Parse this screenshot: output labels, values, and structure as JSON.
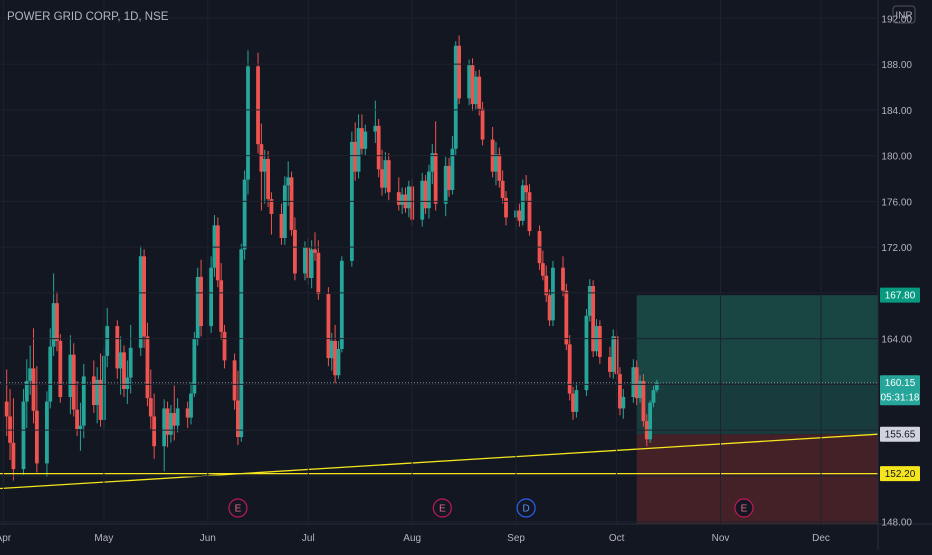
{
  "header": {
    "title": "POWER GRID CORP, 1D, NSE",
    "currency_button": "INR"
  },
  "colors": {
    "background": "#131722",
    "up": "#26a69a",
    "down": "#ef5350",
    "text": "#b2b5be",
    "trendline": "#f5e51c",
    "profit_zone": "#1b4a47",
    "loss_zone": "#4a2128"
  },
  "chart_data": {
    "type": "candlestick",
    "title": "POWER GRID CORP, 1D, NSE",
    "currency": "INR",
    "ylim": [
      147.8,
      193.6
    ],
    "y_ticks": [
      "148.00",
      "152.00",
      "156.00",
      "160.00",
      "164.00",
      "168.00",
      "172.00",
      "176.00",
      "180.00",
      "184.00",
      "188.00",
      "192.00"
    ],
    "x_ticks": [
      {
        "label": "Apr",
        "day": 0
      },
      {
        "label": "May",
        "day": 30
      },
      {
        "label": "Jun",
        "day": 61
      },
      {
        "label": "Jul",
        "day": 91
      },
      {
        "label": "Aug",
        "day": 122
      },
      {
        "label": "Sep",
        "day": 153
      },
      {
        "label": "Oct",
        "day": 183
      },
      {
        "label": "Nov",
        "day": 214
      },
      {
        "label": "Dec",
        "day": 244
      }
    ],
    "x_range_days": [
      -1,
      261
    ],
    "candles": [
      [
        1,
        158.5,
        161.3,
        155.5,
        157.2
      ],
      [
        2,
        157.2,
        159.6,
        153.4,
        154.9
      ],
      [
        3,
        154.9,
        158.8,
        151.6,
        152.6
      ],
      [
        6,
        152.6,
        159.6,
        152.1,
        158.5
      ],
      [
        7,
        158.5,
        162.2,
        156.2,
        160.3
      ],
      [
        8,
        160.3,
        163.4,
        159.1,
        161.4
      ],
      [
        9,
        161.4,
        164.9,
        156.6,
        157.7
      ],
      [
        10,
        157.7,
        161.6,
        152.3,
        153.1
      ],
      [
        13,
        153.1,
        159.4,
        151.9,
        158.5
      ],
      [
        14,
        158.5,
        164.9,
        157.9,
        163.3
      ],
      [
        15,
        163.3,
        169.7,
        162.5,
        167.1
      ],
      [
        16,
        167.1,
        168.1,
        162.9,
        163.8
      ],
      [
        17,
        163.8,
        164.4,
        158.4,
        158.9
      ],
      [
        20,
        158.9,
        164.3,
        157.4,
        162.6
      ],
      [
        21,
        162.6,
        163.6,
        157.2,
        157.8
      ],
      [
        22,
        157.8,
        160.3,
        155.5,
        156.1
      ],
      [
        23,
        156.1,
        158.4,
        154.2,
        156.4
      ],
      [
        24,
        156.4,
        161.8,
        155.3,
        160.7
      ],
      [
        27,
        160.7,
        162.1,
        157.5,
        158.2
      ],
      [
        28,
        158.2,
        161.5,
        156.6,
        160.4
      ],
      [
        29,
        160.4,
        162.7,
        156.3,
        156.9
      ],
      [
        30,
        156.9,
        163.3,
        156.0,
        162.5
      ],
      [
        31,
        162.5,
        166.7,
        161.5,
        165.1
      ],
      [
        34,
        165.1,
        165.6,
        160.5,
        161.4
      ],
      [
        35,
        161.4,
        164.2,
        159.1,
        162.8
      ],
      [
        36,
        162.8,
        163.4,
        158.9,
        159.6
      ],
      [
        37,
        159.6,
        162.1,
        158.3,
        160.6
      ],
      [
        38,
        160.6,
        165.2,
        159.2,
        163.2
      ],
      [
        41,
        163.2,
        172.1,
        162.5,
        171.2
      ],
      [
        42,
        171.2,
        171.8,
        163.2,
        164.2
      ],
      [
        43,
        164.2,
        165.4,
        158.1,
        158.8
      ],
      [
        44,
        158.8,
        161.3,
        156.1,
        157.2
      ],
      [
        45,
        157.2,
        159.2,
        153.5,
        154.6
      ],
      [
        48,
        154.6,
        158.7,
        152.4,
        157.9
      ],
      [
        49,
        157.9,
        158.5,
        154.5,
        155.6
      ],
      [
        50,
        155.6,
        158.2,
        154.9,
        157.5
      ],
      [
        51,
        157.5,
        159.9,
        155.1,
        156.4
      ],
      [
        52,
        156.4,
        158.8,
        155.8,
        157.9
      ],
      [
        55,
        157.9,
        158.5,
        156.2,
        157.1
      ],
      [
        56,
        157.1,
        160.2,
        156.5,
        159.2
      ],
      [
        57,
        159.2,
        164.6,
        158.9,
        164.0
      ],
      [
        58,
        164.0,
        170.2,
        163.4,
        169.4
      ],
      [
        59,
        169.4,
        170.9,
        164.2,
        165.1
      ],
      [
        62,
        165.1,
        171.2,
        164.5,
        170.2
      ],
      [
        63,
        170.2,
        174.8,
        169.4,
        173.9
      ],
      [
        64,
        173.9,
        174.6,
        168.5,
        169.1
      ],
      [
        65,
        169.1,
        170.6,
        163.9,
        164.6
      ],
      [
        66,
        164.6,
        165.2,
        161.4,
        162.1
      ],
      [
        69,
        162.1,
        162.7,
        157.8,
        158.6
      ],
      [
        70,
        158.6,
        161.2,
        154.7,
        155.4
      ],
      [
        71,
        155.4,
        172.3,
        155.0,
        171.8
      ],
      [
        72,
        171.8,
        178.7,
        170.9,
        177.9
      ],
      [
        73,
        177.9,
        189.2,
        176.6,
        187.8
      ],
      [
        76,
        187.8,
        189.0,
        180.2,
        181.0
      ],
      [
        77,
        181.0,
        182.8,
        175.2,
        178.6
      ],
      [
        78,
        178.6,
        180.5,
        175.8,
        179.7
      ],
      [
        79,
        179.7,
        180.4,
        175.5,
        176.2
      ],
      [
        80,
        176.2,
        176.8,
        173.1,
        174.9
      ],
      [
        83,
        174.9,
        175.8,
        172.2,
        172.8
      ],
      [
        84,
        172.8,
        178.2,
        172.2,
        177.4
      ],
      [
        85,
        177.4,
        179.5,
        175.6,
        178.1
      ],
      [
        86,
        178.1,
        178.6,
        173.0,
        173.5
      ],
      [
        87,
        173.5,
        174.6,
        169.1,
        169.7
      ],
      [
        90,
        169.7,
        172.5,
        169.1,
        172.0
      ],
      [
        91,
        172.0,
        172.8,
        168.7,
        169.3
      ],
      [
        92,
        169.3,
        172.6,
        168.4,
        171.8
      ],
      [
        93,
        171.8,
        173.3,
        170.8,
        171.5
      ],
      [
        94,
        171.5,
        172.6,
        167.4,
        167.9
      ],
      [
        97,
        167.9,
        168.5,
        161.6,
        162.3
      ],
      [
        98,
        162.3,
        164.5,
        161.2,
        163.8
      ],
      [
        99,
        163.8,
        165.2,
        160.1,
        160.8
      ],
      [
        100,
        160.8,
        163.8,
        160.5,
        163.1
      ],
      [
        101,
        163.1,
        171.2,
        162.8,
        170.8
      ],
      [
        104,
        170.8,
        182.1,
        170.3,
        181.2
      ],
      [
        105,
        181.2,
        182.9,
        177.8,
        178.6
      ],
      [
        106,
        178.6,
        183.6,
        178.0,
        182.4
      ],
      [
        107,
        182.4,
        183.6,
        180.1,
        180.6
      ],
      [
        108,
        180.6,
        182.7,
        180.0,
        182.1
      ],
      [
        111,
        182.1,
        184.8,
        181.1,
        182.6
      ],
      [
        112,
        182.6,
        183.2,
        178.1,
        178.8
      ],
      [
        113,
        178.8,
        180.5,
        176.5,
        177.2
      ],
      [
        114,
        177.2,
        180.3,
        176.7,
        179.6
      ],
      [
        115,
        179.6,
        180.2,
        176.1,
        176.8
      ],
      [
        118,
        176.8,
        178.1,
        175.2,
        175.7
      ],
      [
        119,
        175.7,
        177.2,
        174.9,
        176.6
      ],
      [
        120,
        176.6,
        177.2,
        175.0,
        175.4
      ],
      [
        121,
        175.4,
        177.8,
        174.6,
        177.3
      ],
      [
        122,
        177.3,
        178.0,
        173.9,
        174.4
      ],
      [
        125,
        174.4,
        178.5,
        173.8,
        177.8
      ],
      [
        126,
        177.8,
        178.3,
        174.9,
        175.4
      ],
      [
        127,
        175.4,
        179.2,
        174.5,
        178.6
      ],
      [
        128,
        178.6,
        181.0,
        177.5,
        180.2
      ],
      [
        129,
        180.2,
        183.0,
        175.2,
        175.8
      ],
      [
        132,
        175.8,
        179.9,
        174.7,
        179.1
      ],
      [
        133,
        179.1,
        179.8,
        176.4,
        177.0
      ],
      [
        134,
        177.0,
        181.7,
        176.6,
        180.6
      ],
      [
        135,
        180.6,
        190.0,
        180.0,
        189.6
      ],
      [
        136,
        189.6,
        190.5,
        184.5,
        185.0
      ],
      [
        139,
        185.0,
        188.4,
        184.4,
        187.9
      ],
      [
        140,
        187.9,
        188.5,
        183.9,
        184.5
      ],
      [
        141,
        184.5,
        187.4,
        184.0,
        186.9
      ],
      [
        142,
        186.9,
        187.5,
        183.5,
        184.1
      ],
      [
        143,
        184.1,
        184.7,
        180.9,
        181.4
      ],
      [
        146,
        181.4,
        182.5,
        178.1,
        178.6
      ],
      [
        147,
        178.6,
        181.2,
        177.4,
        180.1
      ],
      [
        148,
        180.1,
        180.7,
        177.2,
        177.8
      ],
      [
        149,
        177.8,
        178.7,
        175.8,
        176.3
      ],
      [
        150,
        176.3,
        176.9,
        173.9,
        174.6
      ],
      [
        153,
        174.6,
        175.9,
        173.5,
        175.2
      ],
      [
        154,
        175.2,
        175.8,
        173.8,
        174.3
      ],
      [
        155,
        174.3,
        177.9,
        173.9,
        177.4
      ],
      [
        156,
        177.4,
        178.3,
        176.0,
        176.8
      ],
      [
        157,
        176.8,
        177.5,
        173.0,
        173.4
      ],
      [
        160,
        173.4,
        173.9,
        170.0,
        170.6
      ],
      [
        161,
        170.6,
        171.7,
        169.1,
        169.5
      ],
      [
        162,
        169.5,
        170.4,
        167.2,
        167.8
      ],
      [
        163,
        167.8,
        168.3,
        165.1,
        165.6
      ],
      [
        164,
        165.6,
        170.8,
        165.1,
        170.2
      ],
      [
        167,
        170.2,
        171.2,
        167.7,
        168.2
      ],
      [
        168,
        168.2,
        168.8,
        163.0,
        163.5
      ],
      [
        169,
        163.5,
        164.3,
        158.6,
        159.2
      ],
      [
        170,
        159.2,
        159.8,
        156.9,
        157.6
      ],
      [
        171,
        157.6,
        160.1,
        157.1,
        159.5
      ],
      [
        174,
        159.5,
        166.6,
        159.0,
        166.0
      ],
      [
        175,
        166.0,
        169.2,
        165.5,
        168.6
      ],
      [
        176,
        168.6,
        169.1,
        162.4,
        162.9
      ],
      [
        177,
        162.9,
        165.7,
        162.5,
        165.1
      ],
      [
        178,
        165.1,
        165.6,
        161.8,
        162.4
      ],
      [
        181,
        162.4,
        163.3,
        160.6,
        161.1
      ],
      [
        182,
        161.1,
        164.8,
        160.5,
        164.2
      ],
      [
        183,
        164.2,
        164.8,
        160.4,
        160.9
      ],
      [
        184,
        160.9,
        161.5,
        157.3,
        157.9
      ],
      [
        185,
        157.9,
        159.6,
        157.0,
        158.9
      ],
      [
        188,
        158.9,
        162.2,
        158.4,
        161.5
      ],
      [
        189,
        161.5,
        162.1,
        158.2,
        158.8
      ],
      [
        190,
        158.8,
        160.8,
        158.4,
        160.3
      ],
      [
        191,
        160.3,
        160.9,
        156.3,
        156.8
      ],
      [
        192,
        156.8,
        157.4,
        154.6,
        155.2
      ],
      [
        193,
        155.2,
        158.6,
        154.9,
        158.4
      ],
      [
        194,
        158.4,
        159.9,
        158.0,
        159.5
      ],
      [
        195,
        159.5,
        160.4,
        159.3,
        160.15
      ]
    ],
    "horizontal_line": {
      "price": 152.2,
      "label": "152.20"
    },
    "trendline": {
      "from": [
        -1,
        150.9
      ],
      "to": [
        261,
        155.65
      ]
    },
    "current_price": {
      "price": 160.15,
      "label": "160.15",
      "countdown": "05:31:18"
    },
    "position": {
      "start_day": 189,
      "end_day": 261,
      "entry": 160.15,
      "target": 167.8,
      "stop": 155.65,
      "target_label": "167.80",
      "stop_label": "155.65"
    },
    "events": [
      {
        "day": 70,
        "label": "E",
        "kind": "earnings"
      },
      {
        "day": 131,
        "label": "E",
        "kind": "earnings"
      },
      {
        "day": 156,
        "label": "D",
        "kind": "dividend"
      },
      {
        "day": 221,
        "label": "E",
        "kind": "earnings"
      }
    ]
  }
}
